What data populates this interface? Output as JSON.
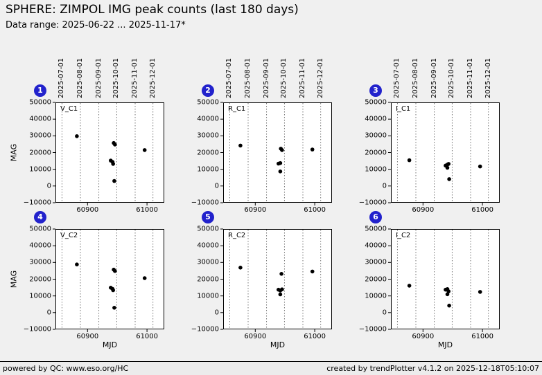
{
  "header": {
    "title": "SPHERE: ZIMPOL IMG peak counts (last 180 days)",
    "subtitle": "Data range: 2025-06-22 ... 2025-11-17*"
  },
  "footer": {
    "left": "powered by QC: www.eso.org/HC",
    "right": "created by trendPlotter v4.1.2 on 2025-12-18T05:10:07"
  },
  "style": {
    "badge_color": "#2222cc",
    "point_color": "#000000",
    "grid_color": "#666666",
    "plot_bg": "#ffffff",
    "page_bg": "#f0f0f0"
  },
  "axes": {
    "xlabel": "MJD",
    "ylabel": "MAG",
    "xlim": [
      60846,
      61029
    ],
    "ylim": [
      -10000,
      50000
    ],
    "xticks": [
      60900,
      61000
    ],
    "yticks": [
      -10000,
      0,
      10000,
      20000,
      30000,
      40000,
      50000
    ],
    "month_gridlines": [
      {
        "label": "2025-07-01",
        "mjd": 60857
      },
      {
        "label": "2025-08-01",
        "mjd": 60888
      },
      {
        "label": "2025-09-01",
        "mjd": 60919
      },
      {
        "label": "2025-10-01",
        "mjd": 60949
      },
      {
        "label": "2025-11-01",
        "mjd": 60980
      },
      {
        "label": "2025-12-01",
        "mjd": 61010
      }
    ]
  },
  "chart_data": [
    {
      "type": "scatter",
      "index": "1",
      "label": "V_C1",
      "xlabel": "MJD",
      "ylabel": "MAG",
      "points": [
        [
          60882,
          29800
        ],
        [
          60939,
          15200
        ],
        [
          60942,
          14400
        ],
        [
          60943,
          13200
        ],
        [
          60944,
          25700
        ],
        [
          60946,
          24800
        ],
        [
          60945,
          3000
        ],
        [
          60996,
          21500
        ]
      ]
    },
    {
      "type": "scatter",
      "index": "2",
      "label": "R_C1",
      "xlabel": "MJD",
      "ylabel": "MAG",
      "points": [
        [
          60875,
          24200
        ],
        [
          60939,
          13400
        ],
        [
          60942,
          13700
        ],
        [
          60943,
          22300
        ],
        [
          60945,
          21500
        ],
        [
          60942,
          8700
        ],
        [
          60996,
          21800
        ]
      ]
    },
    {
      "type": "scatter",
      "index": "3",
      "label": "I_C1",
      "xlabel": "MJD",
      "ylabel": "MAG",
      "points": [
        [
          60877,
          15400
        ],
        [
          60938,
          12200
        ],
        [
          60941,
          12800
        ],
        [
          60943,
          13200
        ],
        [
          60941,
          10900
        ],
        [
          60944,
          4100
        ],
        [
          60996,
          11700
        ]
      ]
    },
    {
      "type": "scatter",
      "index": "4",
      "label": "V_C2",
      "xlabel": "MJD",
      "ylabel": "MAG",
      "points": [
        [
          60882,
          28800
        ],
        [
          60939,
          14900
        ],
        [
          60942,
          14200
        ],
        [
          60943,
          13400
        ],
        [
          60944,
          25700
        ],
        [
          60946,
          24900
        ],
        [
          60945,
          2900
        ],
        [
          60996,
          20600
        ]
      ]
    },
    {
      "type": "scatter",
      "index": "5",
      "label": "R_C2",
      "xlabel": "MJD",
      "ylabel": "MAG",
      "points": [
        [
          60875,
          26900
        ],
        [
          60939,
          13700
        ],
        [
          60942,
          13200
        ],
        [
          60944,
          23200
        ],
        [
          60942,
          10900
        ],
        [
          60945,
          13900
        ],
        [
          60996,
          24600
        ]
      ]
    },
    {
      "type": "scatter",
      "index": "6",
      "label": "I_C2",
      "xlabel": "MJD",
      "ylabel": "MAG",
      "points": [
        [
          60877,
          16100
        ],
        [
          60938,
          13700
        ],
        [
          60941,
          14100
        ],
        [
          60943,
          12700
        ],
        [
          60941,
          11000
        ],
        [
          60944,
          4200
        ],
        [
          60996,
          12400
        ]
      ]
    }
  ]
}
